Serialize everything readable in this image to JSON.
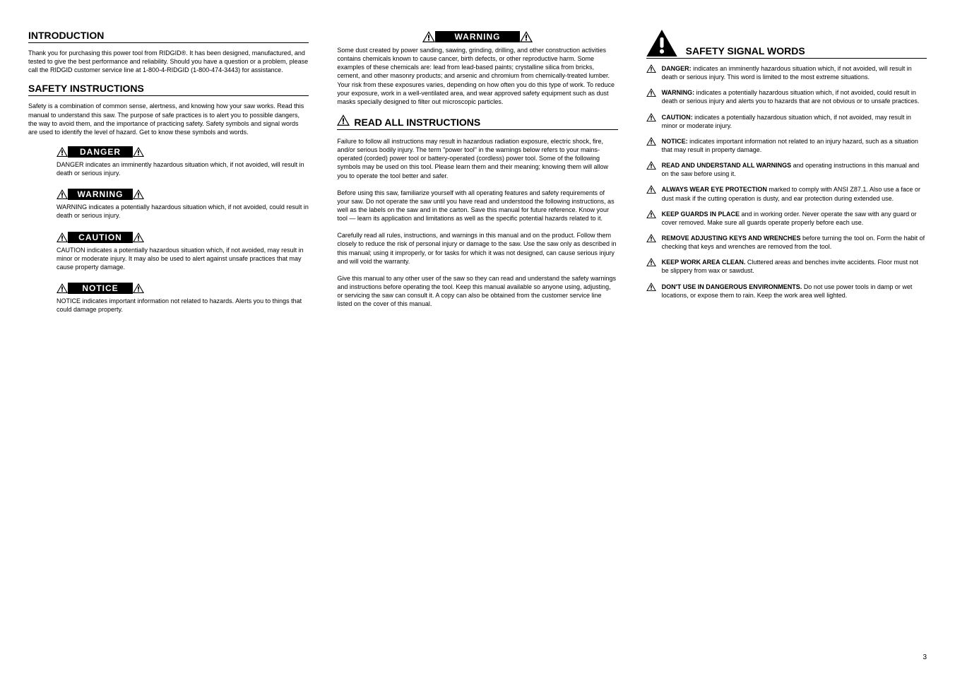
{
  "page_number": "3",
  "col1": {
    "h1": "INTRODUCTION",
    "p1": "Thank you for purchasing this power tool from RIDGID®. It has been designed, manufactured, and tested to give the best performance and reliability. Should you have a question or a problem, please call the RIDGID customer service line at 1-800-4-RIDGID (1-800-474-3443) for assistance.",
    "h2": "SAFETY INSTRUCTIONS",
    "p2": "Safety is a combination of common sense, alertness, and knowing how your saw works. Read this manual to understand this saw. The purpose of safe practices is to alert you to possible dangers, the way to avoid them, and the importance of practicing safety. Safety symbols and signal words are used to identify the level of hazard. Get to know these symbols and words.",
    "signals": [
      {
        "label": "DANGER",
        "desc": "DANGER indicates an imminently hazardous situation which, if not avoided, will result in death or serious injury."
      },
      {
        "label": "WARNING",
        "desc": "WARNING indicates a potentially hazardous situation which, if not avoided, could result in death or serious injury."
      },
      {
        "label": "CAUTION",
        "desc": "CAUTION indicates a potentially hazardous situation which, if not avoided, may result in minor or moderate injury. It may also be used to alert against unsafe practices that may cause property damage."
      },
      {
        "label": "NOTICE",
        "desc": "NOTICE indicates important information not related to hazards. Alerts you to things that could damage property."
      }
    ]
  },
  "col2": {
    "siglabel": "WARNING",
    "p1": "Some dust created by power sanding, sawing, grinding, drilling, and other construction activities contains chemicals known to cause cancer, birth defects, or other reproductive harm. Some examples of these chemicals are: lead from lead-based paints; crystalline silica from bricks, cement, and other masonry products; and arsenic and chromium from chemically-treated lumber. Your risk from these exposures varies, depending on how often you do this type of work. To reduce your exposure, work in a well-ventilated area, and wear approved safety equipment such as dust masks specially designed to filter out microscopic particles.",
    "h2": "READ ALL INSTRUCTIONS",
    "p2": "Failure to follow all instructions may result in hazardous radiation exposure, electric shock, fire, and/or serious bodily injury. The term \"power tool\" in the warnings below refers to your mains-operated (corded) power tool or battery-operated (cordless) power tool. Some of the following symbols may be used on this tool. Please learn them and their meaning; knowing them will allow you to operate the tool better and safer.",
    "p3": "Before using this saw, familiarize yourself with all operating features and safety requirements of your saw. Do not operate the saw until you have read and understood the following instructions, as well as the labels on the saw and in the carton. Save this manual for future reference. Know your tool — learn its application and limitations as well as the specific potential hazards related to it.",
    "p4": "Carefully read all rules, instructions, and warnings in this manual and on the product. Follow them closely to reduce the risk of personal injury or damage to the saw. Use the saw only as described in this manual; using it improperly, or for tasks for which it was not designed, can cause serious injury and will void the warranty.",
    "p5": "Give this manual to any other user of the saw so they can read and understand the safety warnings and instructions before operating the tool. Keep this manual available so anyone using, adjusting, or servicing the saw can consult it. A copy can also be obtained from the customer service line listed on the cover of this manual."
  },
  "col3": {
    "heading": "SAFETY SIGNAL WORDS",
    "items": [
      {
        "lead": "DANGER:",
        "text": "indicates an imminently hazardous situation which, if not avoided, will result in death or serious injury. This word is limited to the most extreme situations."
      },
      {
        "lead": "WARNING:",
        "text": "indicates a potentially hazardous situation which, if not avoided, could result in death or serious injury and alerts you to hazards that are not obvious or to unsafe practices."
      },
      {
        "lead": "CAUTION:",
        "text": "indicates a potentially hazardous situation which, if not avoided, may result in minor or moderate injury."
      },
      {
        "lead": "NOTICE:",
        "text": "indicates important information not related to an injury hazard, such as a situation that may result in property damage."
      },
      {
        "lead": "READ AND UNDERSTAND ALL WARNINGS",
        "text": "and operating instructions in this manual and on the saw before using it."
      },
      {
        "lead": "ALWAYS WEAR EYE PROTECTION",
        "text": "marked to comply with ANSI Z87.1. Also use a face or dust mask if the cutting operation is dusty, and ear protection during extended use."
      },
      {
        "lead": "KEEP GUARDS IN PLACE",
        "text": "and in working order. Never operate the saw with any guard or cover removed. Make sure all guards operate properly before each use."
      },
      {
        "lead": "REMOVE ADJUSTING KEYS AND WRENCHES",
        "text": "before turning the tool on. Form the habit of checking that keys and wrenches are removed from the tool."
      },
      {
        "lead": "KEEP WORK AREA CLEAN.",
        "text": "Cluttered areas and benches invite accidents. Floor must not be slippery from wax or sawdust."
      },
      {
        "lead": "DON'T USE IN DANGEROUS ENVIRONMENTS.",
        "text": "Do not use power tools in damp or wet locations, or expose them to rain. Keep the work area well lighted."
      }
    ]
  }
}
